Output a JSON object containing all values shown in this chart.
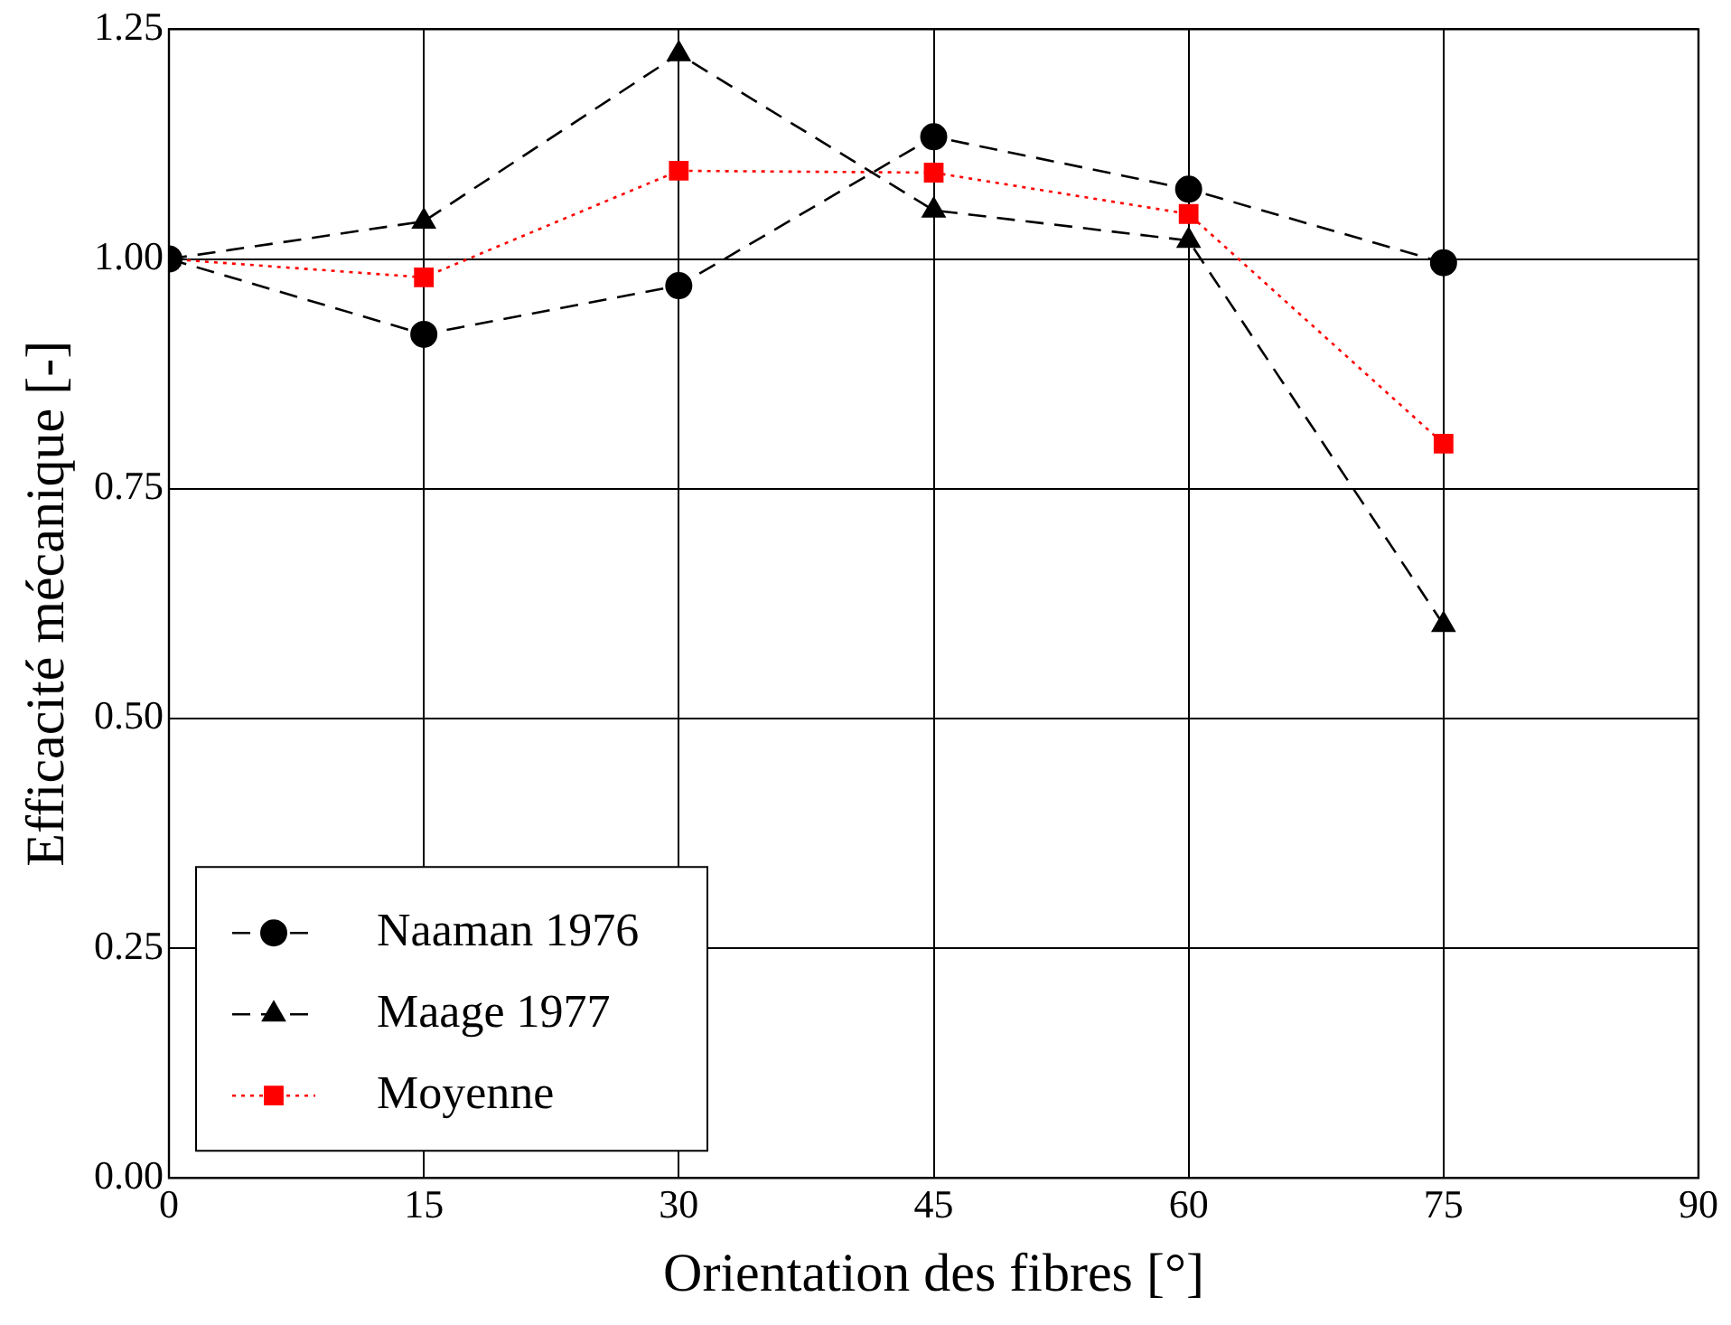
{
  "chart_data": {
    "type": "line",
    "xlabel": "Orientation des fibres [°]",
    "ylabel": "Efficacité mécanique [-]",
    "xlim": [
      0,
      90
    ],
    "xticks": [
      0,
      15,
      30,
      45,
      60,
      75,
      90
    ],
    "ylim": [
      0,
      1.25
    ],
    "yticks": [
      {
        "value": 0,
        "label": "0.00"
      },
      {
        "value": 0.25,
        "label": "0.25"
      },
      {
        "value": 0.5,
        "label": "0.50"
      },
      {
        "value": 0.75,
        "label": "0.75"
      },
      {
        "value": 1,
        "label": "1.00"
      },
      {
        "value": 1.25,
        "label": "1.25"
      }
    ],
    "grid": true,
    "legend": "bottom left",
    "series": [
      {
        "name": "Naaman 1976",
        "color": "#000000",
        "marker": "circle",
        "line_style": "dashed",
        "x": [
          0,
          15,
          30,
          45,
          60,
          75
        ],
        "values": [
          1.0,
          0.918,
          0.971,
          1.133,
          1.076,
          0.996
        ]
      },
      {
        "name": "Maage 1977",
        "color": "#000000",
        "marker": "triangle",
        "line_style": "dashed",
        "x": [
          0,
          15,
          30,
          45,
          60,
          75
        ],
        "values": [
          1.0,
          1.041,
          1.223,
          1.053,
          1.02,
          0.602
        ]
      },
      {
        "name": "Moyenne",
        "color": "#ff0000",
        "marker": "square",
        "line_style": "dotted",
        "x": [
          0,
          15,
          30,
          45,
          60,
          75
        ],
        "values": [
          1.0,
          0.98,
          1.096,
          1.094,
          1.049,
          0.799
        ]
      }
    ]
  }
}
